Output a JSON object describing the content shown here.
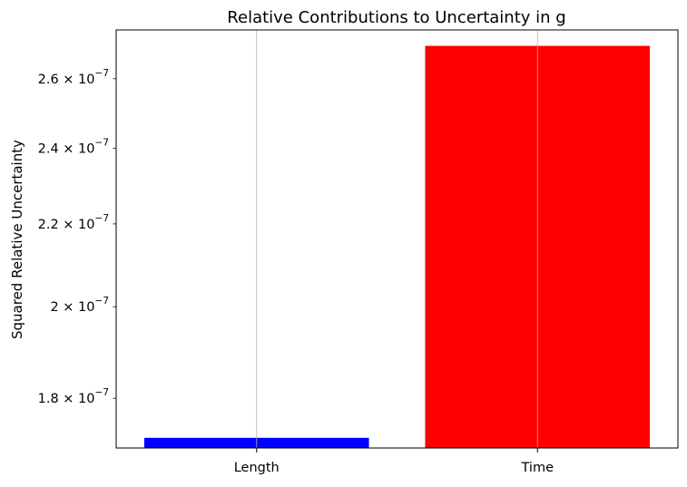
{
  "chart_data": {
    "type": "bar",
    "title": "Relative Contributions to Uncertainty in g",
    "xlabel": "",
    "ylabel": "Squared Relative Uncertainty",
    "y_scale": "log",
    "ylim": [
      1.7e-07,
      2.75e-07
    ],
    "grid": "vertical at category ticks",
    "categories": [
      "Length",
      "Time"
    ],
    "values": [
      1.72e-07,
      2.7e-07
    ],
    "colors": [
      "#0000ff",
      "#ff0000"
    ],
    "y_ticks": [
      {
        "value": 1.8e-07,
        "mantissa": "1.8",
        "exponent": "−7"
      },
      {
        "value": 2e-07,
        "mantissa": "2",
        "exponent": "−7"
      },
      {
        "value": 2.2e-07,
        "mantissa": "2.2",
        "exponent": "−7"
      },
      {
        "value": 2.4e-07,
        "mantissa": "2.4",
        "exponent": "−7"
      },
      {
        "value": 2.6e-07,
        "mantissa": "2.6",
        "exponent": "−7"
      }
    ]
  }
}
